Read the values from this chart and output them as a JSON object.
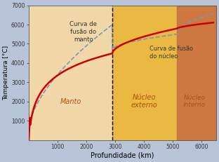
{
  "xlabel": "Profundidade (km)",
  "ylabel": "Temperatura [°C]",
  "xlim": [
    0,
    6500
  ],
  "ylim": [
    0,
    7000
  ],
  "xticks": [
    1000,
    2000,
    3000,
    4000,
    5000,
    6000
  ],
  "yticks": [
    1000,
    2000,
    3000,
    4000,
    5000,
    6000,
    7000
  ],
  "bg_color": "#b8c4d8",
  "zone1_color": "#f2d8a8",
  "zone2_color": "#f0b830",
  "zone3_color": "#d07030",
  "zone1_label": "Manto",
  "zone2_label": "Núcleo\nexterno",
  "zone3_label": "Núcleo\ninterno",
  "boundary1": 2900,
  "boundary2": 5150,
  "mantle_curve_label": "Curva de\nfusão do\nmanto",
  "core_curve_label": "Curva de fusão\ndo núcleo",
  "red_curve_color": "#cc0000",
  "dashed_curve_color": "#7799bb",
  "font_color_zones": "#b05010",
  "font_color_curves": "#333333",
  "xlabel_fontsize": 7.0,
  "ylabel_fontsize": 6.5,
  "tick_fontsize": 5.5,
  "zone_label_fontsize": 7.0,
  "curve_label_fontsize": 6.2
}
